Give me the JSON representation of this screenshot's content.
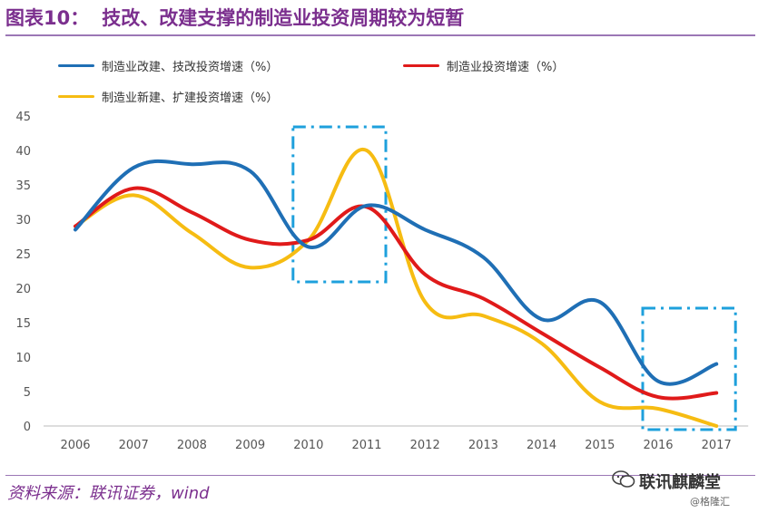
{
  "header": {
    "figure_label": "图表10：",
    "caption": "技改、改建支撑的制造业投资周期较为短暂"
  },
  "footer": {
    "source": "资料来源：联讯证券，wind"
  },
  "watermark": {
    "main": "联讯麒麟堂",
    "sub": "@格隆汇",
    "icon": "wechat-icon"
  },
  "chart_data": {
    "type": "line",
    "x": [
      "2006",
      "2007",
      "2008",
      "2009",
      "2010",
      "2011",
      "2012",
      "2013",
      "2014",
      "2015",
      "2016",
      "2017"
    ],
    "ylim": [
      0,
      45
    ],
    "yticks": [
      0,
      5,
      10,
      15,
      20,
      25,
      30,
      35,
      40,
      45
    ],
    "grid": false,
    "legend_position": "top",
    "series": [
      {
        "name": "制造业改建、技改投资增速（%）",
        "color": "#1f6fb5",
        "values": [
          28.5,
          37.5,
          38,
          37,
          26,
          32,
          28.5,
          24.5,
          15.5,
          18,
          6.5,
          9
        ]
      },
      {
        "name": "制造业投资增速（%）",
        "color": "#e01a1a",
        "values": [
          29,
          34.5,
          31,
          27,
          27,
          31.8,
          22,
          18.5,
          13.5,
          8.5,
          4.2,
          4.8
        ]
      },
      {
        "name": "制造业新建、扩建投资增速（%）",
        "color": "#f6bc12",
        "values": [
          29,
          33.5,
          28,
          23,
          27,
          40,
          18,
          16,
          12,
          3.5,
          2.5,
          0
        ]
      }
    ],
    "highlight_boxes": [
      {
        "x_from": "2010",
        "x_to": "2011",
        "color": "#1ea0dc"
      },
      {
        "x_from": "2016",
        "x_to": "2017",
        "color": "#1ea0dc"
      }
    ]
  }
}
